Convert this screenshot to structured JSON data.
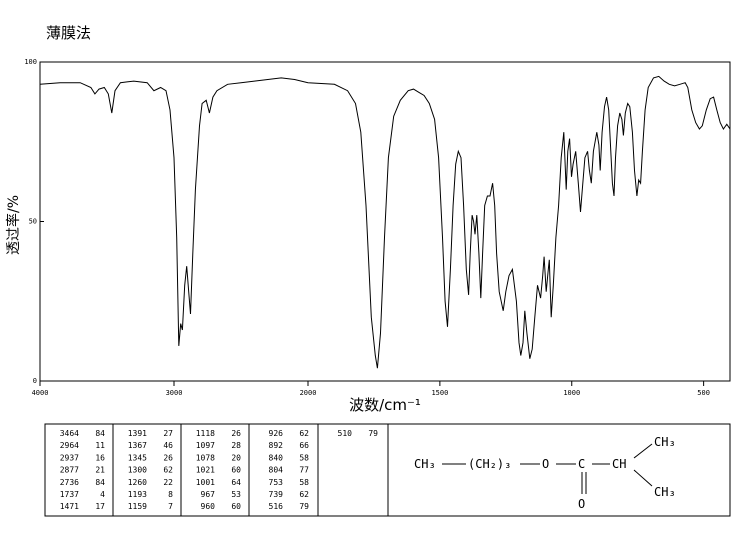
{
  "chart_data": {
    "type": "line",
    "title": "薄膜法",
    "xlabel": "波数/cm⁻¹",
    "ylabel": "透过率/%",
    "xlim": [
      4000,
      400
    ],
    "xticks": [
      4000,
      3000,
      2000,
      1500,
      1000,
      500
    ],
    "ylim": [
      0,
      100
    ],
    "yticks": [
      0,
      50,
      100
    ],
    "x": [
      4000,
      3850,
      3700,
      3620,
      3590,
      3560,
      3520,
      3490,
      3464,
      3440,
      3400,
      3300,
      3200,
      3150,
      3100,
      3060,
      3030,
      3000,
      2980,
      2964,
      2950,
      2937,
      2920,
      2905,
      2890,
      2877,
      2860,
      2840,
      2810,
      2790,
      2760,
      2736,
      2710,
      2680,
      2600,
      2500,
      2400,
      2300,
      2200,
      2100,
      2050,
      2000,
      1900,
      1850,
      1820,
      1800,
      1780,
      1760,
      1745,
      1737,
      1725,
      1710,
      1695,
      1675,
      1650,
      1620,
      1600,
      1580,
      1560,
      1540,
      1520,
      1505,
      1490,
      1480,
      1471,
      1460,
      1450,
      1440,
      1430,
      1420,
      1410,
      1400,
      1391,
      1385,
      1378,
      1372,
      1367,
      1360,
      1352,
      1345,
      1338,
      1330,
      1320,
      1310,
      1300,
      1292,
      1285,
      1275,
      1260,
      1250,
      1238,
      1225,
      1210,
      1200,
      1193,
      1185,
      1178,
      1170,
      1159,
      1150,
      1140,
      1130,
      1118,
      1110,
      1105,
      1097,
      1090,
      1085,
      1078,
      1070,
      1060,
      1050,
      1040,
      1030,
      1021,
      1015,
      1008,
      1001,
      995,
      985,
      975,
      967,
      960,
      950,
      940,
      933,
      926,
      918,
      905,
      897,
      892,
      885,
      876,
      868,
      860,
      852,
      846,
      840,
      834,
      826,
      818,
      810,
      804,
      797,
      788,
      780,
      770,
      762,
      753,
      746,
      739,
      732,
      722,
      710,
      690,
      670,
      650,
      630,
      610,
      590,
      570,
      560,
      545,
      530,
      516,
      505,
      490,
      475,
      462,
      450,
      437,
      425,
      412,
      400
    ],
    "series": [
      {
        "color": "#000000",
        "values": [
          93,
          93.5,
          93.5,
          92,
          90,
          91.5,
          92,
          90,
          84,
          91,
          93.5,
          94,
          93.5,
          91,
          92,
          91,
          85,
          70,
          45,
          11,
          18,
          16,
          30,
          36,
          28,
          21,
          40,
          60,
          80,
          87,
          88,
          84,
          89,
          91,
          93,
          93.5,
          94,
          94.5,
          95,
          94.5,
          94,
          93.5,
          93,
          91,
          87,
          78,
          55,
          20,
          8,
          4,
          15,
          45,
          70,
          83,
          88,
          91,
          91.5,
          90.5,
          89.5,
          87,
          82,
          70,
          45,
          25,
          17,
          35,
          55,
          68,
          72,
          70,
          55,
          35,
          27,
          40,
          52,
          50,
          46,
          52,
          40,
          26,
          40,
          55,
          58,
          58,
          62,
          55,
          40,
          28,
          22,
          28,
          33,
          35,
          25,
          12,
          8,
          12,
          22,
          15,
          7,
          10,
          20,
          30,
          26,
          33,
          39,
          28,
          34,
          38,
          20,
          30,
          45,
          55,
          70,
          78,
          60,
          72,
          76,
          64,
          68,
          72,
          62,
          53,
          60,
          70,
          72,
          66,
          62,
          72,
          78,
          74,
          66,
          78,
          86,
          89,
          85,
          72,
          62,
          58,
          70,
          80,
          84,
          82,
          77,
          84,
          87,
          86,
          78,
          66,
          58,
          63,
          62,
          72,
          85,
          92,
          95,
          95.5,
          94,
          93,
          92.5,
          93,
          93.5,
          92,
          85,
          81,
          79,
          80,
          85,
          88.5,
          89,
          85,
          81,
          79,
          80.5,
          79
        ]
      }
    ]
  },
  "peak_table": {
    "columns": [
      [
        [
          3464,
          84
        ],
        [
          2964,
          11
        ],
        [
          2937,
          16
        ],
        [
          2877,
          21
        ],
        [
          2736,
          84
        ],
        [
          1737,
          4
        ],
        [
          1471,
          17
        ]
      ],
      [
        [
          1391,
          27
        ],
        [
          1367,
          46
        ],
        [
          1345,
          26
        ],
        [
          1300,
          62
        ],
        [
          1260,
          22
        ],
        [
          1193,
          8
        ],
        [
          1159,
          7
        ]
      ],
      [
        [
          1118,
          26
        ],
        [
          1097,
          28
        ],
        [
          1078,
          20
        ],
        [
          1021,
          60
        ],
        [
          1001,
          64
        ],
        [
          967,
          53
        ],
        [
          960,
          60
        ]
      ],
      [
        [
          926,
          62
        ],
        [
          892,
          66
        ],
        [
          840,
          58
        ],
        [
          804,
          77
        ],
        [
          753,
          58
        ],
        [
          739,
          62
        ],
        [
          516,
          79
        ]
      ],
      [
        [
          510,
          79
        ]
      ]
    ]
  },
  "structure": {
    "labels": [
      "CH₃",
      "(CH₂)₃",
      "O",
      "C",
      "CH",
      "CH₃",
      "CH₃",
      "O"
    ]
  }
}
